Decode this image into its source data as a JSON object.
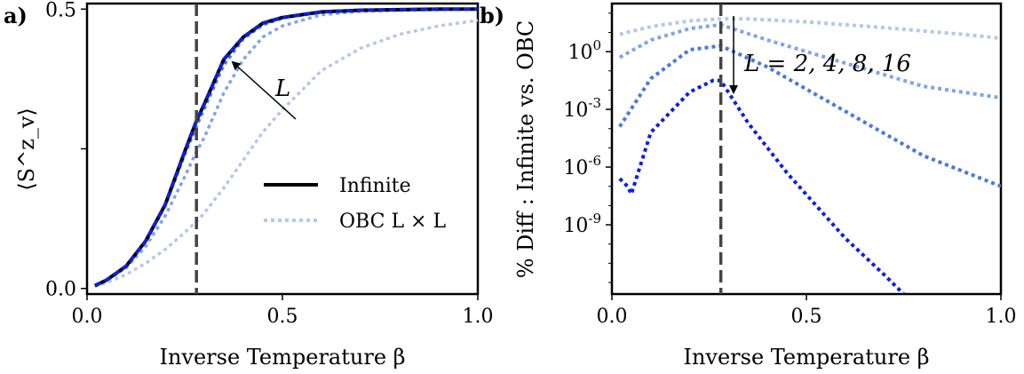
{
  "panels": {
    "a": "a)",
    "b": "b)"
  },
  "colors": {
    "infinite": "#000000",
    "L2": "#b4c8ea",
    "L4": "#7fa6e6",
    "L8": "#4a78e0",
    "L16": "#0a1ee8",
    "vline": "#444444"
  },
  "annotations": {
    "a_arrow_label": "L",
    "b_arrow_label": "L = 2, 4, 8, 16"
  },
  "chart_data": [
    {
      "type": "line",
      "panel": "a",
      "xlabel": "Inverse Temperature β",
      "ylabel": "⟨S^z_v⟩",
      "xlim": [
        0.0,
        1.0
      ],
      "ylim": [
        -0.01,
        0.51
      ],
      "xticks": [
        0.0,
        0.5,
        1.0
      ],
      "xtick_labels": [
        "0.0",
        "0.5",
        "1.0"
      ],
      "yticks": [
        0.0,
        0.25,
        0.5
      ],
      "ytick_labels": [
        "0.0",
        "",
        "0.5"
      ],
      "vline_x": 0.28,
      "legend": {
        "position": "lower-right",
        "entries": [
          "Infinite",
          "OBC L × L"
        ]
      },
      "x": [
        0.02,
        0.05,
        0.1,
        0.15,
        0.2,
        0.25,
        0.28,
        0.3,
        0.35,
        0.4,
        0.45,
        0.5,
        0.6,
        0.7,
        0.8,
        0.9,
        1.0
      ],
      "series": [
        {
          "name": "Infinite",
          "style": "solid",
          "color_key": "infinite",
          "values": [
            0.005,
            0.015,
            0.04,
            0.085,
            0.15,
            0.245,
            0.3,
            0.33,
            0.41,
            0.45,
            0.475,
            0.485,
            0.495,
            0.498,
            0.499,
            0.5,
            0.5
          ]
        },
        {
          "name": "L=2",
          "style": "dotted",
          "color_key": "L2",
          "values": [
            0.004,
            0.01,
            0.025,
            0.045,
            0.07,
            0.1,
            0.12,
            0.135,
            0.18,
            0.23,
            0.28,
            0.32,
            0.39,
            0.43,
            0.455,
            0.47,
            0.48
          ]
        },
        {
          "name": "L=4",
          "style": "dotted",
          "color_key": "L4",
          "values": [
            0.005,
            0.014,
            0.037,
            0.075,
            0.13,
            0.2,
            0.245,
            0.27,
            0.35,
            0.41,
            0.45,
            0.47,
            0.49,
            0.496,
            0.498,
            0.499,
            0.5
          ]
        },
        {
          "name": "L=8",
          "style": "dotted",
          "color_key": "L8",
          "values": [
            0.005,
            0.015,
            0.04,
            0.084,
            0.148,
            0.24,
            0.29,
            0.322,
            0.4,
            0.447,
            0.472,
            0.484,
            0.495,
            0.498,
            0.499,
            0.5,
            0.5
          ]
        },
        {
          "name": "L=16",
          "style": "dotted",
          "color_key": "L16",
          "values": [
            0.005,
            0.015,
            0.04,
            0.085,
            0.15,
            0.245,
            0.3,
            0.33,
            0.41,
            0.45,
            0.475,
            0.485,
            0.495,
            0.498,
            0.499,
            0.5,
            0.5
          ]
        }
      ]
    },
    {
      "type": "line",
      "panel": "b",
      "xlabel": "Inverse Temperature β",
      "ylabel": "% Diff : Infinite vs. OBC",
      "yscale": "log",
      "xlim": [
        0.0,
        1.0
      ],
      "ylim_log10": [
        -12.6,
        2.5
      ],
      "xticks": [
        0.0,
        0.5,
        1.0
      ],
      "xtick_labels": [
        "0.0",
        "0.5",
        "1.0"
      ],
      "yticks_log10": [
        0,
        -3,
        -6,
        -9
      ],
      "ytick_labels": [
        "10^0",
        "10^-3",
        "10^-6",
        "10^-9"
      ],
      "vline_x": 0.28,
      "series": [
        {
          "name": "L=2",
          "style": "dotted",
          "color_key": "L2",
          "x": [
            0.02,
            0.1,
            0.2,
            0.28,
            0.35,
            0.5,
            0.7,
            0.9,
            1.0
          ],
          "log10_values": [
            0.9,
            1.3,
            1.6,
            1.7,
            1.7,
            1.55,
            1.25,
            0.9,
            0.7
          ]
        },
        {
          "name": "L=4",
          "style": "dotted",
          "color_key": "L4",
          "x": [
            0.02,
            0.1,
            0.2,
            0.28,
            0.4,
            0.6,
            0.8,
            1.0
          ],
          "log10_values": [
            -0.3,
            0.6,
            1.2,
            1.4,
            0.6,
            -0.6,
            -1.8,
            -2.4
          ]
        },
        {
          "name": "L=8",
          "style": "dotted",
          "color_key": "L8",
          "x": [
            0.02,
            0.1,
            0.2,
            0.28,
            0.4,
            0.6,
            0.8,
            1.0
          ],
          "log10_values": [
            -3.9,
            -1.4,
            0.1,
            0.3,
            -0.8,
            -3.1,
            -5.4,
            -7.0
          ]
        },
        {
          "name": "L=16",
          "style": "dotted",
          "color_key": "L16",
          "x": [
            0.02,
            0.04,
            0.05,
            0.1,
            0.2,
            0.26,
            0.28,
            0.35,
            0.45,
            0.6,
            0.7,
            0.75
          ],
          "log10_values": [
            -6.6,
            -7.0,
            -7.4,
            -4.2,
            -2.1,
            -1.5,
            -1.5,
            -3.7,
            -6.3,
            -9.7,
            -11.6,
            -12.6
          ]
        }
      ]
    }
  ]
}
